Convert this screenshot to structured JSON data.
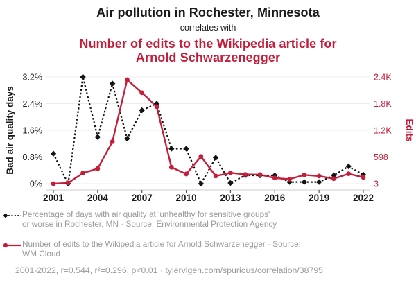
{
  "header": {
    "title": "Air pollution in Rochester, Minnesota",
    "connector": "correlates with",
    "subtitle": "Number of edits to the Wikipedia article for Arnold Schwarzenegger"
  },
  "colors": {
    "accent_red": "#c41e3a",
    "series_black": "#141414",
    "text_dark": "#1a1a1a",
    "muted_gray": "#9b9b9b",
    "grid_gray": "#ececec",
    "axis_gray": "#cccccc",
    "tick_dark": "#555555"
  },
  "chart_data": {
    "type": "line",
    "x": [
      2001,
      2002,
      2003,
      2004,
      2005,
      2006,
      2007,
      2008,
      2009,
      2010,
      2011,
      2012,
      2013,
      2014,
      2015,
      2016,
      2017,
      2018,
      2019,
      2020,
      2021,
      2022
    ],
    "x_ticks": [
      2001,
      2004,
      2007,
      2010,
      2013,
      2016,
      2019,
      2022
    ],
    "grid": "horizontal",
    "legend_position": "bottom",
    "left_axis": {
      "label": "Bad air quality days",
      "ticks": [
        "0%",
        "0.8%",
        "1.6%",
        "2.4%",
        "3.2%"
      ],
      "min": 0,
      "max": 3.2
    },
    "right_axis": {
      "label": "Edits",
      "ticks": [
        "3",
        "598",
        "1.2K",
        "1.8K",
        "2.4K"
      ],
      "min": 3,
      "max": 2383
    },
    "series": [
      {
        "name": "Percentage of days with air quality at 'unhealthy for sensitive groups' or worse in Rochester, MN",
        "axis": "left",
        "color": "#141414",
        "style": "dashed",
        "marker": "diamond",
        "values": [
          0.9,
          0.0,
          3.2,
          1.4,
          3.0,
          1.35,
          2.2,
          2.4,
          1.05,
          1.05,
          0.0,
          0.78,
          0.02,
          0.25,
          0.25,
          0.25,
          0.05,
          0.05,
          0.05,
          0.25,
          0.52,
          0.27
        ]
      },
      {
        "name": "Number of edits to the Wikipedia article for Arnold Schwarzenegger",
        "axis": "right",
        "color": "#c41e3a",
        "style": "solid",
        "marker": "circle",
        "values": [
          3,
          20,
          240,
          340,
          940,
          2320,
          2030,
          1720,
          370,
          220,
          610,
          175,
          245,
          210,
          205,
          130,
          105,
          200,
          175,
          115,
          225,
          145
        ]
      }
    ]
  },
  "legend": {
    "items": [
      {
        "marker": "black-diamond-dashed",
        "lines": [
          "Percentage of days with air quality at 'unhealthy for sensitive groups'",
          "or worse in Rochester, MN · Source: Environmental Protection Agency"
        ]
      },
      {
        "marker": "red-circle-solid",
        "lines": [
          "Number of edits to the Wikipedia article for Arnold Schwarzenegger · Source:",
          "WM Cloud"
        ]
      }
    ]
  },
  "footer": {
    "text": "2001-2022, r=0.544, r²=0.296, p<0.01 · tylervigen.com/spurious/correlation/38795"
  }
}
